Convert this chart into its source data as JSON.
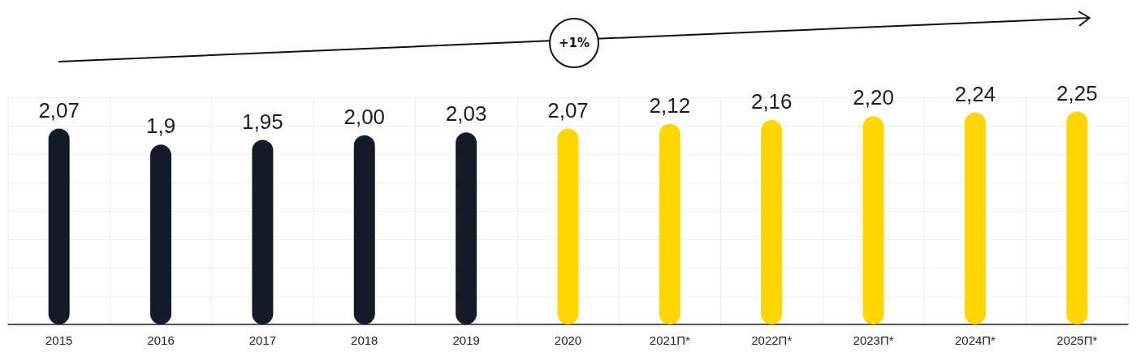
{
  "chart_data": {
    "type": "bar",
    "categories": [
      "2015",
      "2016",
      "2017",
      "2018",
      "2019",
      "2020",
      "2021П*",
      "2022П*",
      "2023П*",
      "2024П*",
      "2025П*"
    ],
    "values": [
      2.07,
      1.9,
      1.95,
      2.0,
      2.03,
      2.07,
      2.12,
      2.16,
      2.2,
      2.24,
      2.25
    ],
    "value_labels": [
      "2,07",
      "1,9",
      "1,95",
      "2,00",
      "2,03",
      "2,07",
      "2,12",
      "2,16",
      "2,20",
      "2,24",
      "2,25"
    ],
    "colors": [
      "#141a28",
      "#141a28",
      "#141a28",
      "#141a28",
      "#141a28",
      "#ffd500",
      "#ffd500",
      "#ffd500",
      "#ffd500",
      "#ffd500",
      "#ffd500"
    ],
    "grid": true,
    "annotations": [
      "+1%"
    ]
  }
}
